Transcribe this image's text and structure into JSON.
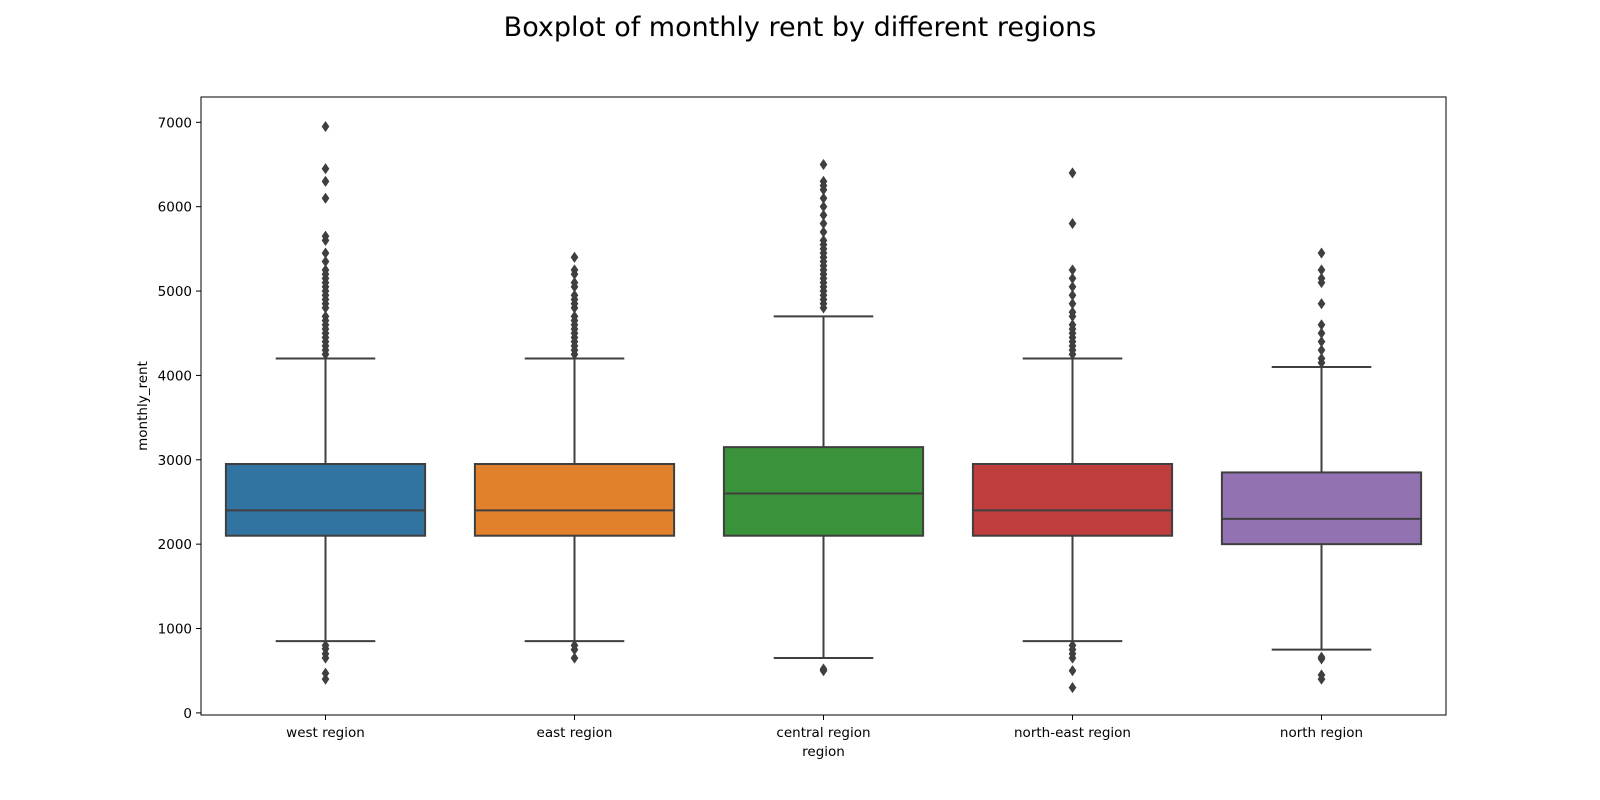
{
  "chart_data": {
    "type": "boxplot",
    "title": "Boxplot of monthly rent by different regions",
    "xlabel": "region",
    "ylabel": "monthly_rent",
    "ylim": [
      -25,
      7300
    ],
    "yticks": [
      0,
      1000,
      2000,
      3000,
      4000,
      5000,
      6000,
      7000
    ],
    "ytick_labels": [
      "0",
      "1000",
      "2000",
      "3000",
      "4000",
      "5000",
      "6000",
      "7000"
    ],
    "grid": false,
    "legend": "none",
    "categories": [
      "west region",
      "east region",
      "central region",
      "north-east region",
      "north region"
    ],
    "series": [
      {
        "category": "west region",
        "color": "#3274a1",
        "whisker_low": 850,
        "q1": 2100,
        "median": 2400,
        "q3": 2950,
        "whisker_high": 4200,
        "outliers": [
          400,
          470,
          650,
          700,
          760,
          800,
          4250,
          4300,
          4350,
          4400,
          4450,
          4500,
          4550,
          4600,
          4650,
          4700,
          4800,
          4850,
          4900,
          4950,
          5000,
          5050,
          5100,
          5150,
          5200,
          5250,
          5350,
          5450,
          5600,
          5650,
          6100,
          6300,
          6450,
          6950
        ]
      },
      {
        "category": "east region",
        "color": "#e1812c",
        "whisker_low": 850,
        "q1": 2100,
        "median": 2400,
        "q3": 2950,
        "whisker_high": 4200,
        "outliers": [
          650,
          750,
          800,
          4250,
          4300,
          4350,
          4400,
          4450,
          4500,
          4550,
          4600,
          4650,
          4700,
          4800,
          4850,
          4900,
          4950,
          5050,
          5100,
          5200,
          5250,
          5400
        ]
      },
      {
        "category": "central region",
        "color": "#3a923a",
        "whisker_low": 650,
        "q1": 2100,
        "median": 2600,
        "q3": 3150,
        "whisker_high": 4700,
        "outliers": [
          500,
          520,
          4800,
          4850,
          4900,
          4950,
          5000,
          5050,
          5100,
          5150,
          5200,
          5250,
          5300,
          5350,
          5400,
          5450,
          5500,
          5550,
          5600,
          5700,
          5800,
          5900,
          6000,
          6100,
          6200,
          6250,
          6300,
          6500
        ]
      },
      {
        "category": "north-east region",
        "color": "#c03d3e",
        "whisker_low": 850,
        "q1": 2100,
        "median": 2400,
        "q3": 2950,
        "whisker_high": 4200,
        "outliers": [
          300,
          500,
          650,
          700,
          750,
          800,
          4250,
          4300,
          4350,
          4400,
          4450,
          4500,
          4550,
          4600,
          4700,
          4750,
          4850,
          4950,
          5050,
          5150,
          5250,
          5800,
          6400
        ]
      },
      {
        "category": "north region",
        "color": "#9372b2",
        "whisker_low": 750,
        "q1": 2000,
        "median": 2300,
        "q3": 2850,
        "whisker_high": 4100,
        "outliers": [
          400,
          450,
          640,
          660,
          4150,
          4200,
          4300,
          4400,
          4500,
          4600,
          4850,
          5100,
          5150,
          5250,
          5450
        ]
      }
    ]
  }
}
